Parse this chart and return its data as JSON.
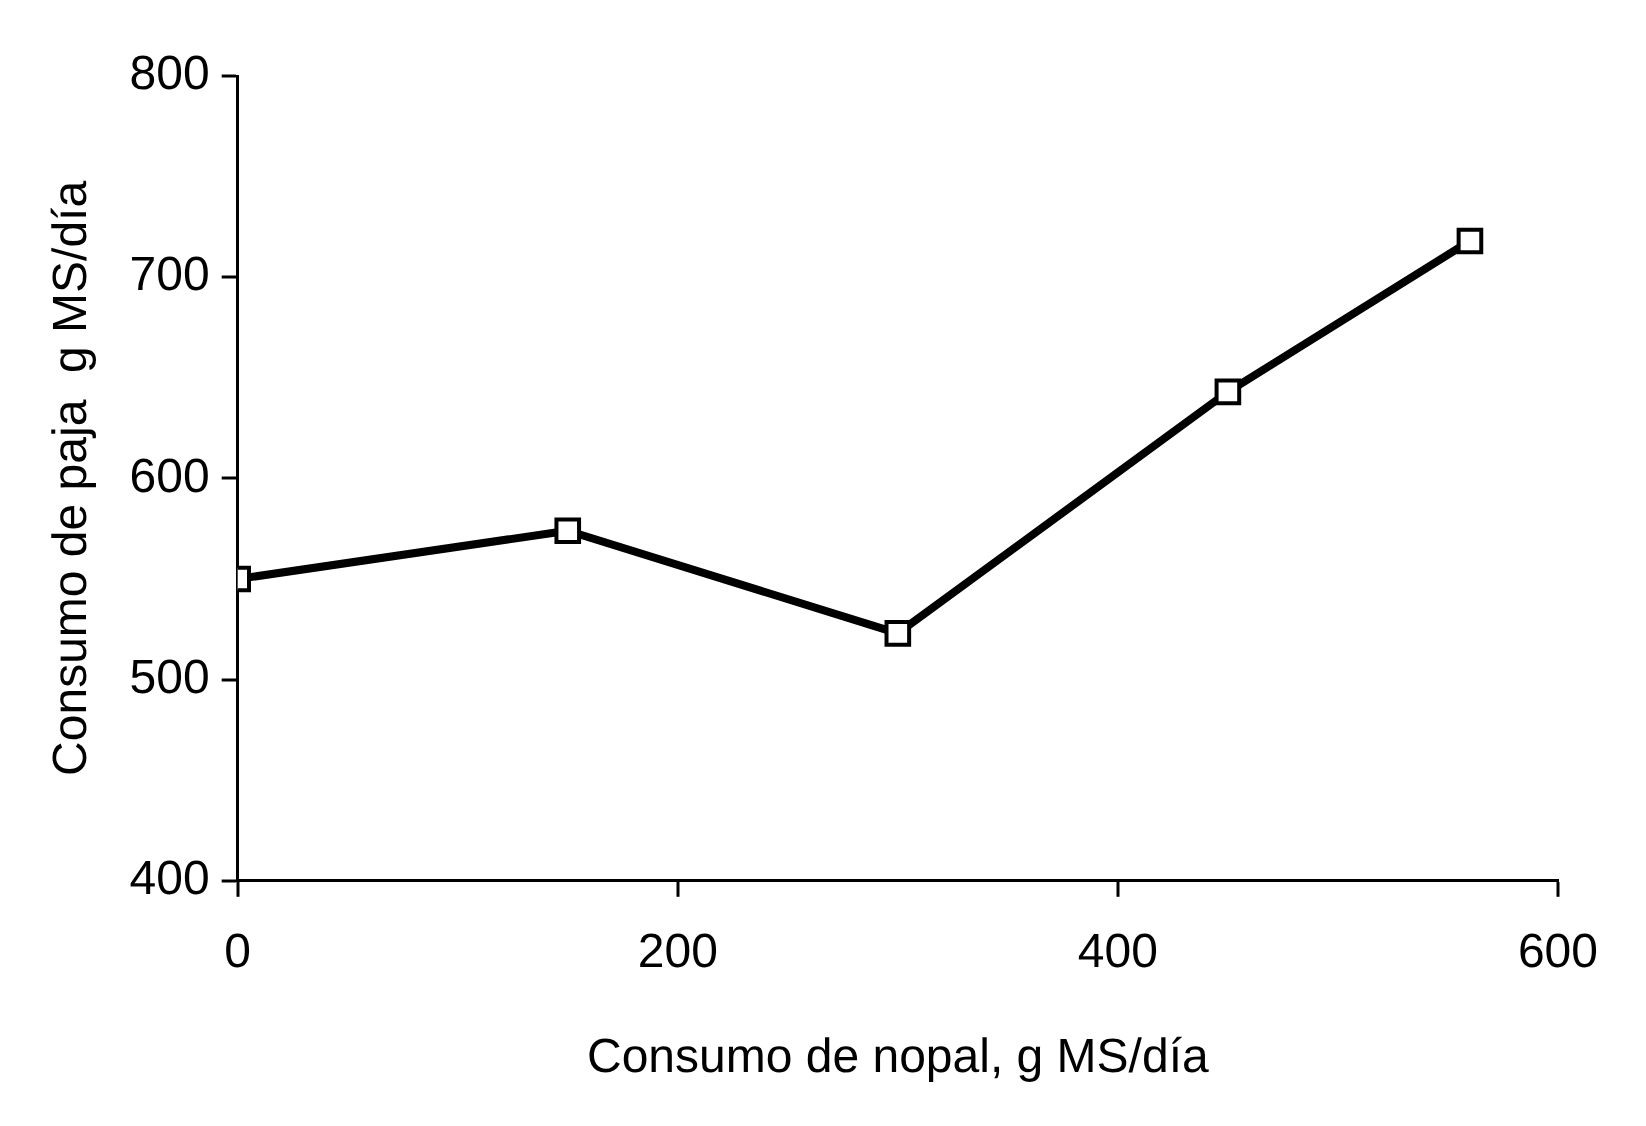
{
  "chart_data": {
    "type": "line",
    "xlabel": "Consumo de nopal, g MS/día",
    "ylabel": "Consumo de paja  g MS/día",
    "x": [
      0,
      150,
      300,
      450,
      560
    ],
    "series": [
      {
        "color": "#000000",
        "values": [
          550,
          574,
          523,
          643,
          718
        ]
      }
    ],
    "xlim": [
      0,
      600
    ],
    "xticks": [
      0,
      200,
      400,
      600
    ],
    "ylim": [
      400,
      800
    ],
    "yticks": [
      400,
      500,
      600,
      700,
      800
    ],
    "grid": false,
    "legend": false,
    "marker": "square",
    "line_style": "solid"
  }
}
